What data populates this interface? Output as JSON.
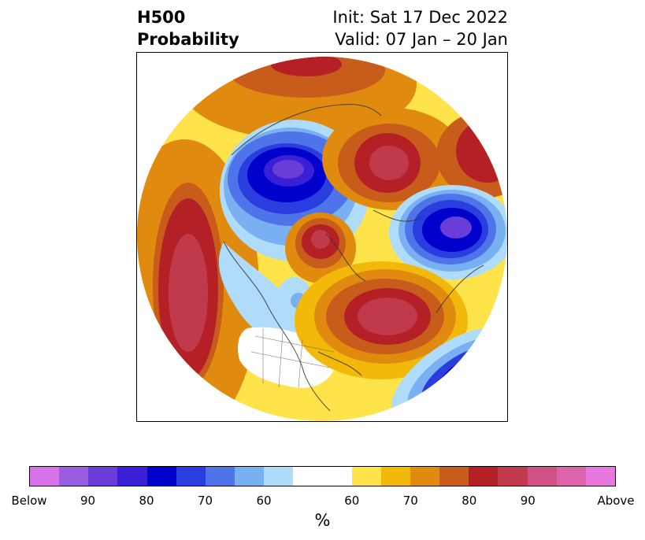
{
  "header": {
    "title_line1": "H500",
    "title_line2": "Probability",
    "init": "Init: Sat 17 Dec 2022",
    "valid": "Valid: 07 Jan – 20 Jan"
  },
  "map": {
    "projection": "north-polar-stereographic",
    "features": [
      "Below-normal anomaly (blue)",
      "Above-normal anomaly (red/orange)"
    ]
  },
  "colorbar": {
    "unit": "%",
    "colors": [
      "#d872e8",
      "#9a5ce0",
      "#6a3dd8",
      "#3a1fd6",
      "#0000cc",
      "#2a3ee0",
      "#4f74ea",
      "#79b0f2",
      "#aedcfa",
      "#ffffff",
      "#fee34a",
      "#f2b80a",
      "#e08b10",
      "#c85c1a",
      "#b42025",
      "#c03a4c",
      "#d05285",
      "#dc64aa",
      "#e678de"
    ],
    "ticks": [
      "Below",
      "90",
      "80",
      "70",
      "60",
      "60",
      "70",
      "80",
      "90",
      "Above"
    ]
  }
}
